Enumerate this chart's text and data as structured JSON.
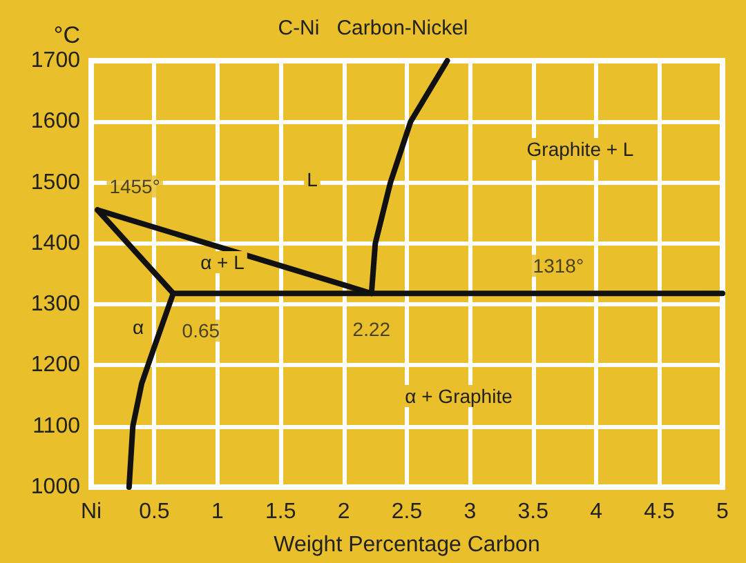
{
  "chart_data": {
    "type": "line",
    "title": "C-Ni   Carbon-Nickel",
    "xlabel": "Weight Percentage Carbon",
    "ylabel": "°C",
    "xlim": [
      0,
      5
    ],
    "ylim": [
      1000,
      1700
    ],
    "xticks": [
      {
        "value": 0,
        "label": "Ni"
      },
      0.5,
      1,
      1.5,
      2,
      2.5,
      3,
      3.5,
      4,
      4.5,
      5
    ],
    "yticks": [
      1000,
      1100,
      1200,
      1300,
      1400,
      1500,
      1600,
      1700
    ],
    "grid": true,
    "series": [
      {
        "color": "#111111",
        "x": [
          0.05,
          2.22
        ],
        "values": [
          1455,
          1318
        ]
      },
      {
        "color": "#111111",
        "x": [
          0.05,
          0.65
        ],
        "values": [
          1455,
          1318
        ]
      },
      {
        "color": "#111111",
        "x": [
          0.65,
          5
        ],
        "values": [
          1318,
          1318
        ]
      },
      {
        "color": "#111111",
        "x": [
          0.65,
          0.5,
          0.4,
          0.33,
          0.3
        ],
        "values": [
          1318,
          1230,
          1170,
          1100,
          1000
        ]
      },
      {
        "color": "#111111",
        "x": [
          2.22,
          2.25,
          2.37,
          2.53,
          2.82
        ],
        "values": [
          1318,
          1400,
          1500,
          1600,
          1700
        ]
      }
    ],
    "annotations": [
      {
        "text": "1455°",
        "x": 0.05,
        "y": 1455
      },
      "L",
      "Graphite + L",
      "α + L",
      "α",
      {
        "text": "0.65",
        "x": 0.65,
        "y": 1318
      },
      {
        "text": "2.22",
        "x": 2.22,
        "y": 1318
      },
      {
        "text": "1318°",
        "x": 3.7,
        "y": 1318
      },
      "α + Graphite"
    ]
  }
}
